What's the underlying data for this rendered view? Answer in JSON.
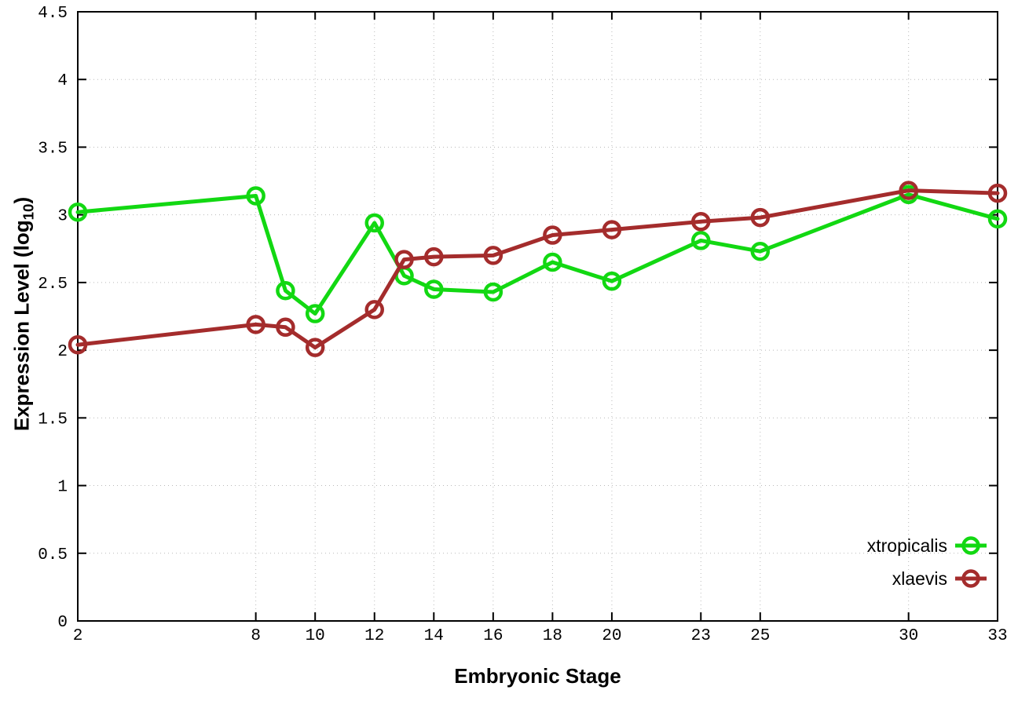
{
  "chart_data": {
    "type": "line",
    "title": "",
    "xlabel": "Embryonic Stage",
    "ylabel_prefix": "Expression Level (log",
    "ylabel_sub": "10",
    "ylabel_suffix": ")",
    "xlim": [
      2,
      33
    ],
    "ylim": [
      0,
      4.5
    ],
    "grid": true,
    "legend_position": "bottom-right",
    "x_ticks": [
      2,
      8,
      10,
      12,
      14,
      16,
      18,
      20,
      23,
      25,
      30,
      33
    ],
    "y_ticks": [
      0,
      0.5,
      1,
      1.5,
      2,
      2.5,
      3,
      3.5,
      4,
      4.5
    ],
    "y_tick_labels": [
      "0",
      "0.5",
      "1",
      "1.5",
      "2",
      "2.5",
      "3",
      "3.5",
      "4",
      "4.5"
    ],
    "x": [
      2,
      8,
      9,
      10,
      12,
      13,
      14,
      16,
      18,
      20,
      23,
      25,
      30,
      33
    ],
    "series": [
      {
        "name": "xtropicalis",
        "color": "#12d812",
        "values": [
          3.02,
          3.14,
          2.44,
          2.27,
          2.94,
          2.55,
          2.45,
          2.43,
          2.65,
          2.51,
          2.81,
          2.73,
          3.15,
          2.97
        ]
      },
      {
        "name": "xlaevis",
        "color": "#a42c2c",
        "values": [
          2.04,
          2.19,
          2.17,
          2.02,
          2.3,
          2.67,
          2.69,
          2.7,
          2.85,
          2.89,
          2.95,
          2.98,
          3.18,
          3.16
        ]
      }
    ],
    "style": {
      "border_color": "#000000",
      "grid_color": "#b9b9b9",
      "background": "#ffffff"
    }
  }
}
